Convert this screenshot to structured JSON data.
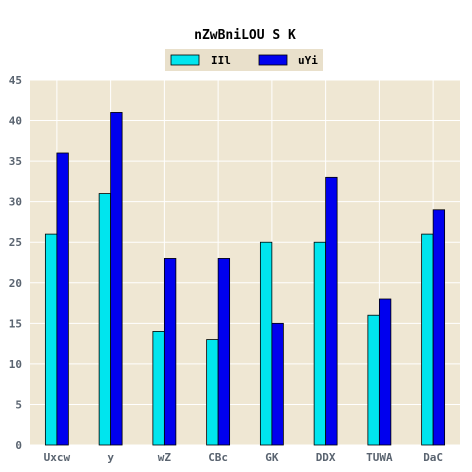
{
  "chart_data": {
    "type": "bar",
    "title": "nZwBniLOU S K",
    "xlabel": "",
    "ylabel": "",
    "categories": [
      "Uxcw",
      "y",
      "wZ",
      "CBc",
      "GK",
      "DDX",
      "TUWA",
      "DaC"
    ],
    "series": [
      {
        "name": "IIl",
        "color": "#00e5ee",
        "values": [
          26,
          31,
          14,
          13,
          25,
          25,
          16,
          26
        ]
      },
      {
        "name": "uYi",
        "color": "#0000ee",
        "values": [
          36,
          41,
          23,
          23,
          15,
          33,
          18,
          29
        ]
      }
    ],
    "ylim": [
      0,
      45
    ],
    "yticks": [
      0,
      5,
      10,
      15,
      20,
      25,
      30,
      35,
      40,
      45
    ],
    "grid": true,
    "legend": "top-center",
    "background": "#efe7d3",
    "grid_color": "#ffffff"
  }
}
